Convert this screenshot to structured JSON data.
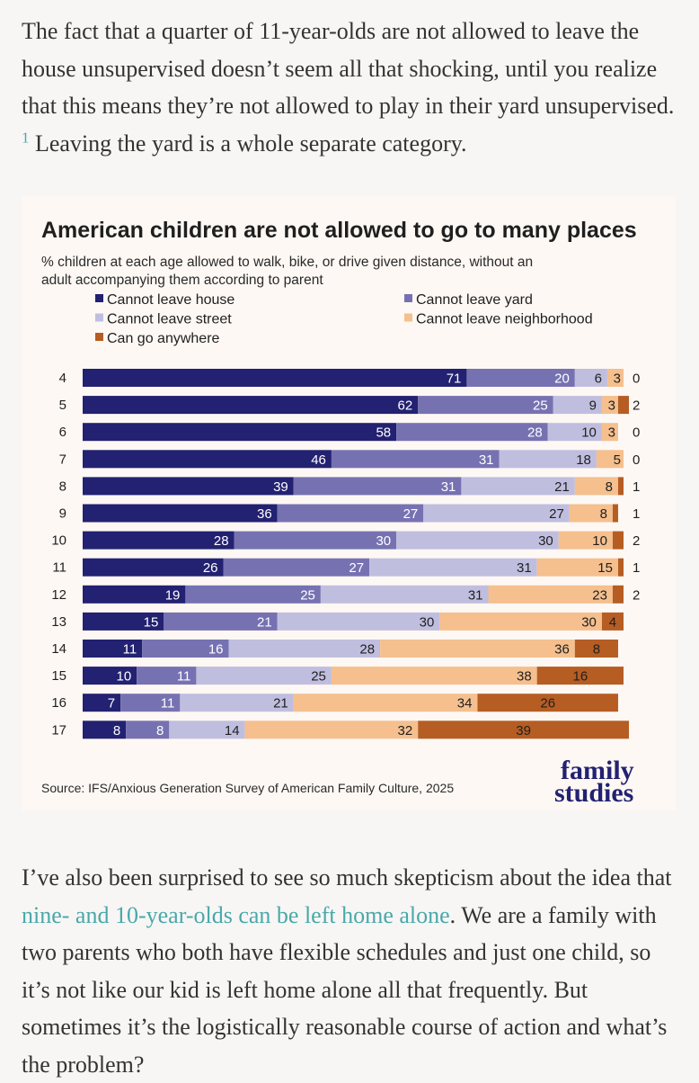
{
  "article": {
    "para1_a": "The fact that a quarter of 11-year-olds are not allowed to leave the house unsupervised doesn’t seem all that shocking, until you realize that this means they’re not allowed to play in their yard unsupervised.",
    "footnote": "1",
    "para1_b": " Leaving the yard is a whole separate category.",
    "para2_a": "I’ve also been surprised to see so much skepticism about the idea that ",
    "para2_link": "nine- and 10-year-olds can be left home alone",
    "para2_b": ". We are a family with two parents who both have flexible schedules and just one child, so it’s not like our kid is left home alone all that frequently. But sometimes it’s the logistically reasonable course of action and what’s the problem?"
  },
  "chart_data": {
    "type": "bar",
    "orientation": "horizontal",
    "stacked": true,
    "title": "American children are not allowed to go to many places",
    "subtitle_line1": "% children at each age allowed to walk, bike, or drive given distance, without an",
    "subtitle_line2": "adult accompanying them according to parent",
    "source": "Source: IFS/Anxious Generation Survey of American Family Culture, 2025",
    "logo_line1": "family",
    "logo_line2": "studies",
    "legend_placement": "top",
    "categories": [
      "4",
      "5",
      "6",
      "7",
      "8",
      "9",
      "10",
      "11",
      "12",
      "13",
      "14",
      "15",
      "16",
      "17"
    ],
    "series": [
      {
        "name": "Cannot leave house",
        "color": "#232171",
        "values": [
          71,
          62,
          58,
          46,
          39,
          36,
          28,
          26,
          19,
          15,
          11,
          10,
          7,
          8
        ]
      },
      {
        "name": "Cannot leave yard",
        "color": "#7672b2",
        "values": [
          20,
          25,
          28,
          31,
          31,
          27,
          30,
          27,
          25,
          21,
          16,
          11,
          11,
          8
        ]
      },
      {
        "name": "Cannot leave street",
        "color": "#c0bedf",
        "values": [
          6,
          9,
          10,
          18,
          21,
          27,
          30,
          31,
          31,
          30,
          28,
          25,
          21,
          14
        ]
      },
      {
        "name": "Cannot leave neighborhood",
        "color": "#f5bf8e",
        "values": [
          3,
          3,
          3,
          5,
          8,
          8,
          10,
          15,
          23,
          30,
          36,
          38,
          34,
          32
        ]
      },
      {
        "name": "Can go anywhere",
        "color": "#b65d23",
        "values": [
          0,
          2,
          0,
          0,
          1,
          1,
          2,
          1,
          2,
          4,
          8,
          16,
          26,
          39
        ]
      }
    ],
    "xlim": [
      0,
      100
    ],
    "grid": false
  }
}
